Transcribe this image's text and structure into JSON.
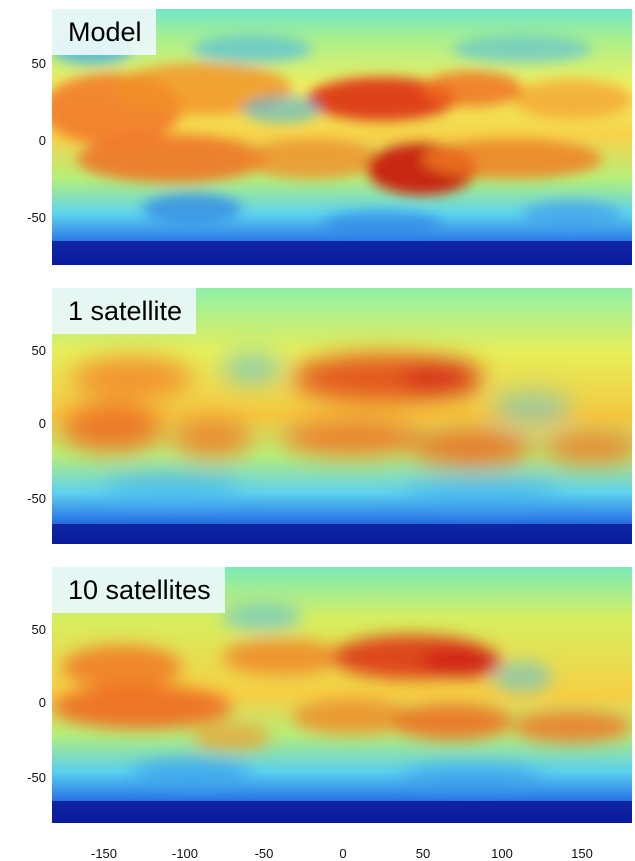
{
  "panels": [
    {
      "title": "Model"
    },
    {
      "title": "1 satellite"
    },
    {
      "title": "10 satellites"
    }
  ],
  "axes": {
    "x_ticks": [
      "-150",
      "-100",
      "-50",
      "0",
      "50",
      "100",
      "150"
    ],
    "y_ticks": [
      "50",
      "0",
      "-50"
    ]
  },
  "colormap": {
    "name": "jet",
    "stops": [
      "#08128c",
      "#1c4fdc",
      "#35b0f0",
      "#7fe9d0",
      "#d8ef52",
      "#f7c32a",
      "#f07c1f",
      "#dc3215",
      "#a80d0d"
    ]
  }
}
